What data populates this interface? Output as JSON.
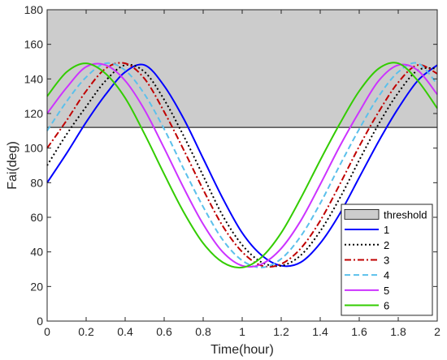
{
  "chart_data": {
    "type": "line",
    "xlabel": "Time(hour)",
    "ylabel": "Fai(deg)",
    "xlim": [
      0,
      2
    ],
    "ylim": [
      0,
      180
    ],
    "xticks": [
      "0",
      "0.2",
      "0.4",
      "0.6",
      "0.8",
      "1",
      "1.2",
      "1.4",
      "1.6",
      "1.8",
      "2"
    ],
    "yticks": [
      "0",
      "20",
      "40",
      "60",
      "80",
      "100",
      "120",
      "140",
      "160",
      "180"
    ],
    "grid": false,
    "legend_position": "bottom-right",
    "threshold": {
      "name": "threshold",
      "from": 112,
      "to": 180,
      "color": "#cccccc"
    },
    "x": [
      0,
      0.1,
      0.2,
      0.3,
      0.4,
      0.5,
      0.6,
      0.7,
      0.8,
      0.9,
      1.0,
      1.1,
      1.2,
      1.3,
      1.4,
      1.5,
      1.6,
      1.7,
      1.8,
      1.9,
      2.0
    ],
    "series": [
      {
        "name": "1",
        "color": "#0000ff",
        "dash": "solid",
        "values": [
          80,
          97,
          115,
          131,
          144,
          148,
          136,
          117,
          94,
          71,
          51,
          38,
          32,
          34,
          45,
          62,
          83,
          104,
          123,
          139,
          148
        ]
      },
      {
        "name": "2",
        "color": "#000000",
        "dash": "dot",
        "values": [
          90,
          108,
          124,
          139,
          148,
          144,
          128,
          107,
          84,
          61,
          44,
          34,
          32,
          38,
          52,
          71,
          93,
          114,
          132,
          145,
          146
        ]
      },
      {
        "name": "3",
        "color": "#c00000",
        "dash": "dashdot",
        "values": [
          100,
          116,
          133,
          146,
          149,
          140,
          121,
          99,
          76,
          55,
          40,
          32,
          33,
          42,
          58,
          79,
          101,
          121,
          138,
          148,
          143
        ]
      },
      {
        "name": "4",
        "color": "#5bc0eb",
        "dash": "dash",
        "values": [
          110,
          127,
          141,
          149,
          145,
          131,
          111,
          88,
          66,
          47,
          35,
          31,
          36,
          49,
          68,
          90,
          111,
          130,
          144,
          149,
          137
        ]
      },
      {
        "name": "5",
        "color": "#cc33ff",
        "dash": "solid",
        "values": [
          120,
          135,
          147,
          148,
          139,
          122,
          100,
          77,
          56,
          40,
          32,
          33,
          42,
          58,
          79,
          101,
          121,
          139,
          148,
          145,
          131
        ]
      },
      {
        "name": "6",
        "color": "#33cc00",
        "dash": "solid",
        "values": [
          130,
          144,
          149,
          143,
          129,
          108,
          85,
          63,
          45,
          34,
          31,
          37,
          51,
          71,
          93,
          114,
          133,
          146,
          149,
          139,
          123
        ]
      }
    ]
  }
}
